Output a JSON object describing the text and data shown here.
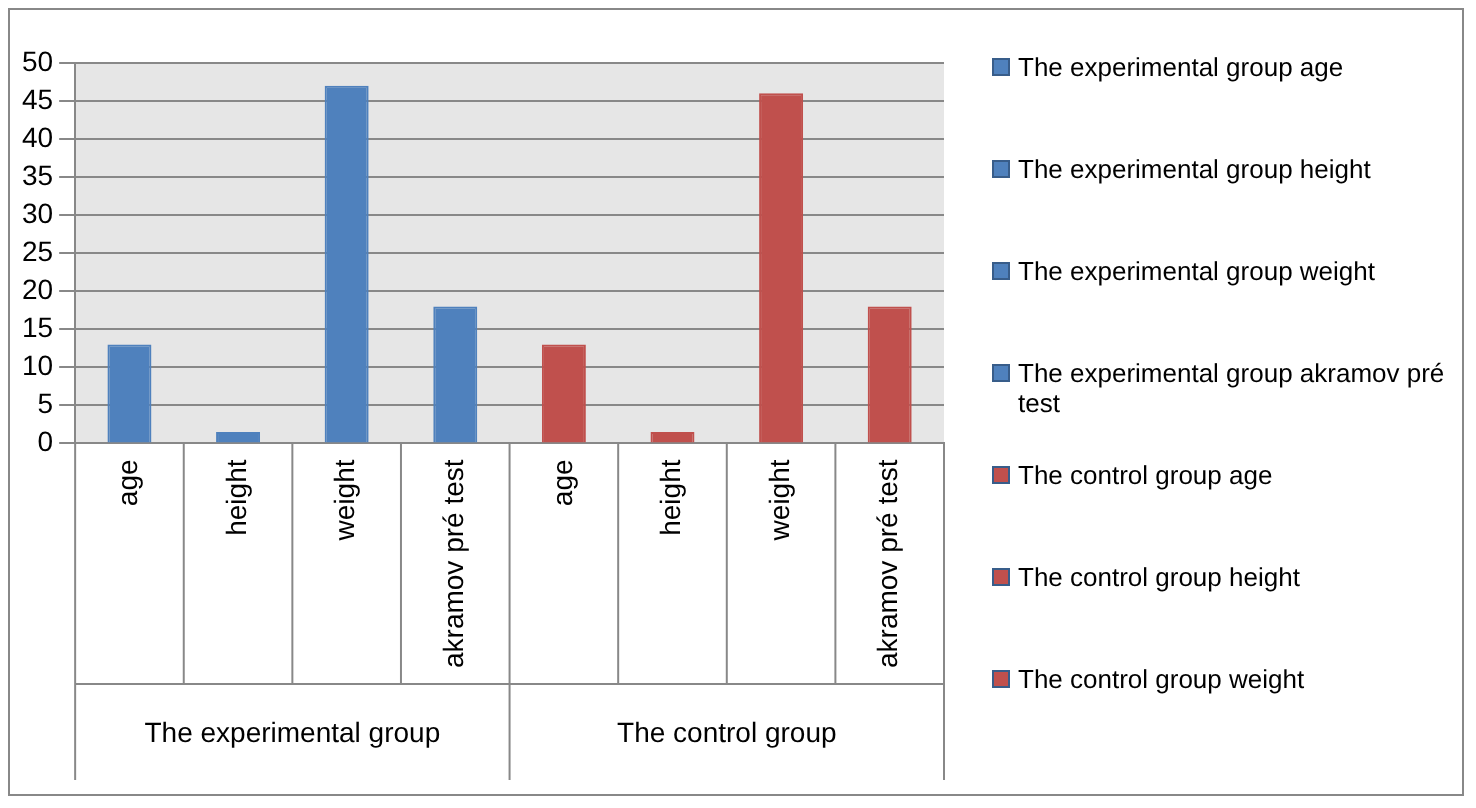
{
  "chart_data": {
    "type": "bar",
    "categories": [
      "age",
      "height",
      "weight",
      "akramov pré test",
      "age",
      "height",
      "weight",
      "akramov pré test"
    ],
    "series": [
      {
        "name": "The experimental group age",
        "color": "#4f81bd",
        "values": [
          13,
          null,
          null,
          null,
          null,
          null,
          null,
          null
        ]
      },
      {
        "name": "The experimental group height",
        "color": "#4f81bd",
        "values": [
          null,
          1.5,
          null,
          null,
          null,
          null,
          null,
          null
        ]
      },
      {
        "name": "The experimental group weight",
        "color": "#4f81bd",
        "values": [
          null,
          null,
          47,
          null,
          null,
          null,
          null,
          null
        ]
      },
      {
        "name": "The experimental group akramov pré test",
        "color": "#4f81bd",
        "values": [
          null,
          null,
          null,
          18,
          null,
          null,
          null,
          null
        ]
      },
      {
        "name": "The control group age",
        "color": "#c0504d",
        "values": [
          null,
          null,
          null,
          null,
          13,
          null,
          null,
          null
        ]
      },
      {
        "name": "The control group height",
        "color": "#c0504d",
        "values": [
          null,
          null,
          null,
          null,
          null,
          1.5,
          null,
          null
        ]
      },
      {
        "name": "The control group weight",
        "color": "#c0504d",
        "values": [
          null,
          null,
          null,
          null,
          null,
          null,
          46,
          null
        ]
      },
      {
        "color": "#c0504d",
        "values": [
          null,
          null,
          null,
          null,
          null,
          null,
          null,
          18
        ]
      }
    ],
    "annotations": [
      "The experimental group",
      "The control group"
    ],
    "ylim": [
      0,
      50
    ],
    "yticks": [
      0,
      5,
      10,
      15,
      20,
      25,
      30,
      35,
      40,
      45,
      50
    ],
    "grid": "y",
    "legend": "right"
  }
}
